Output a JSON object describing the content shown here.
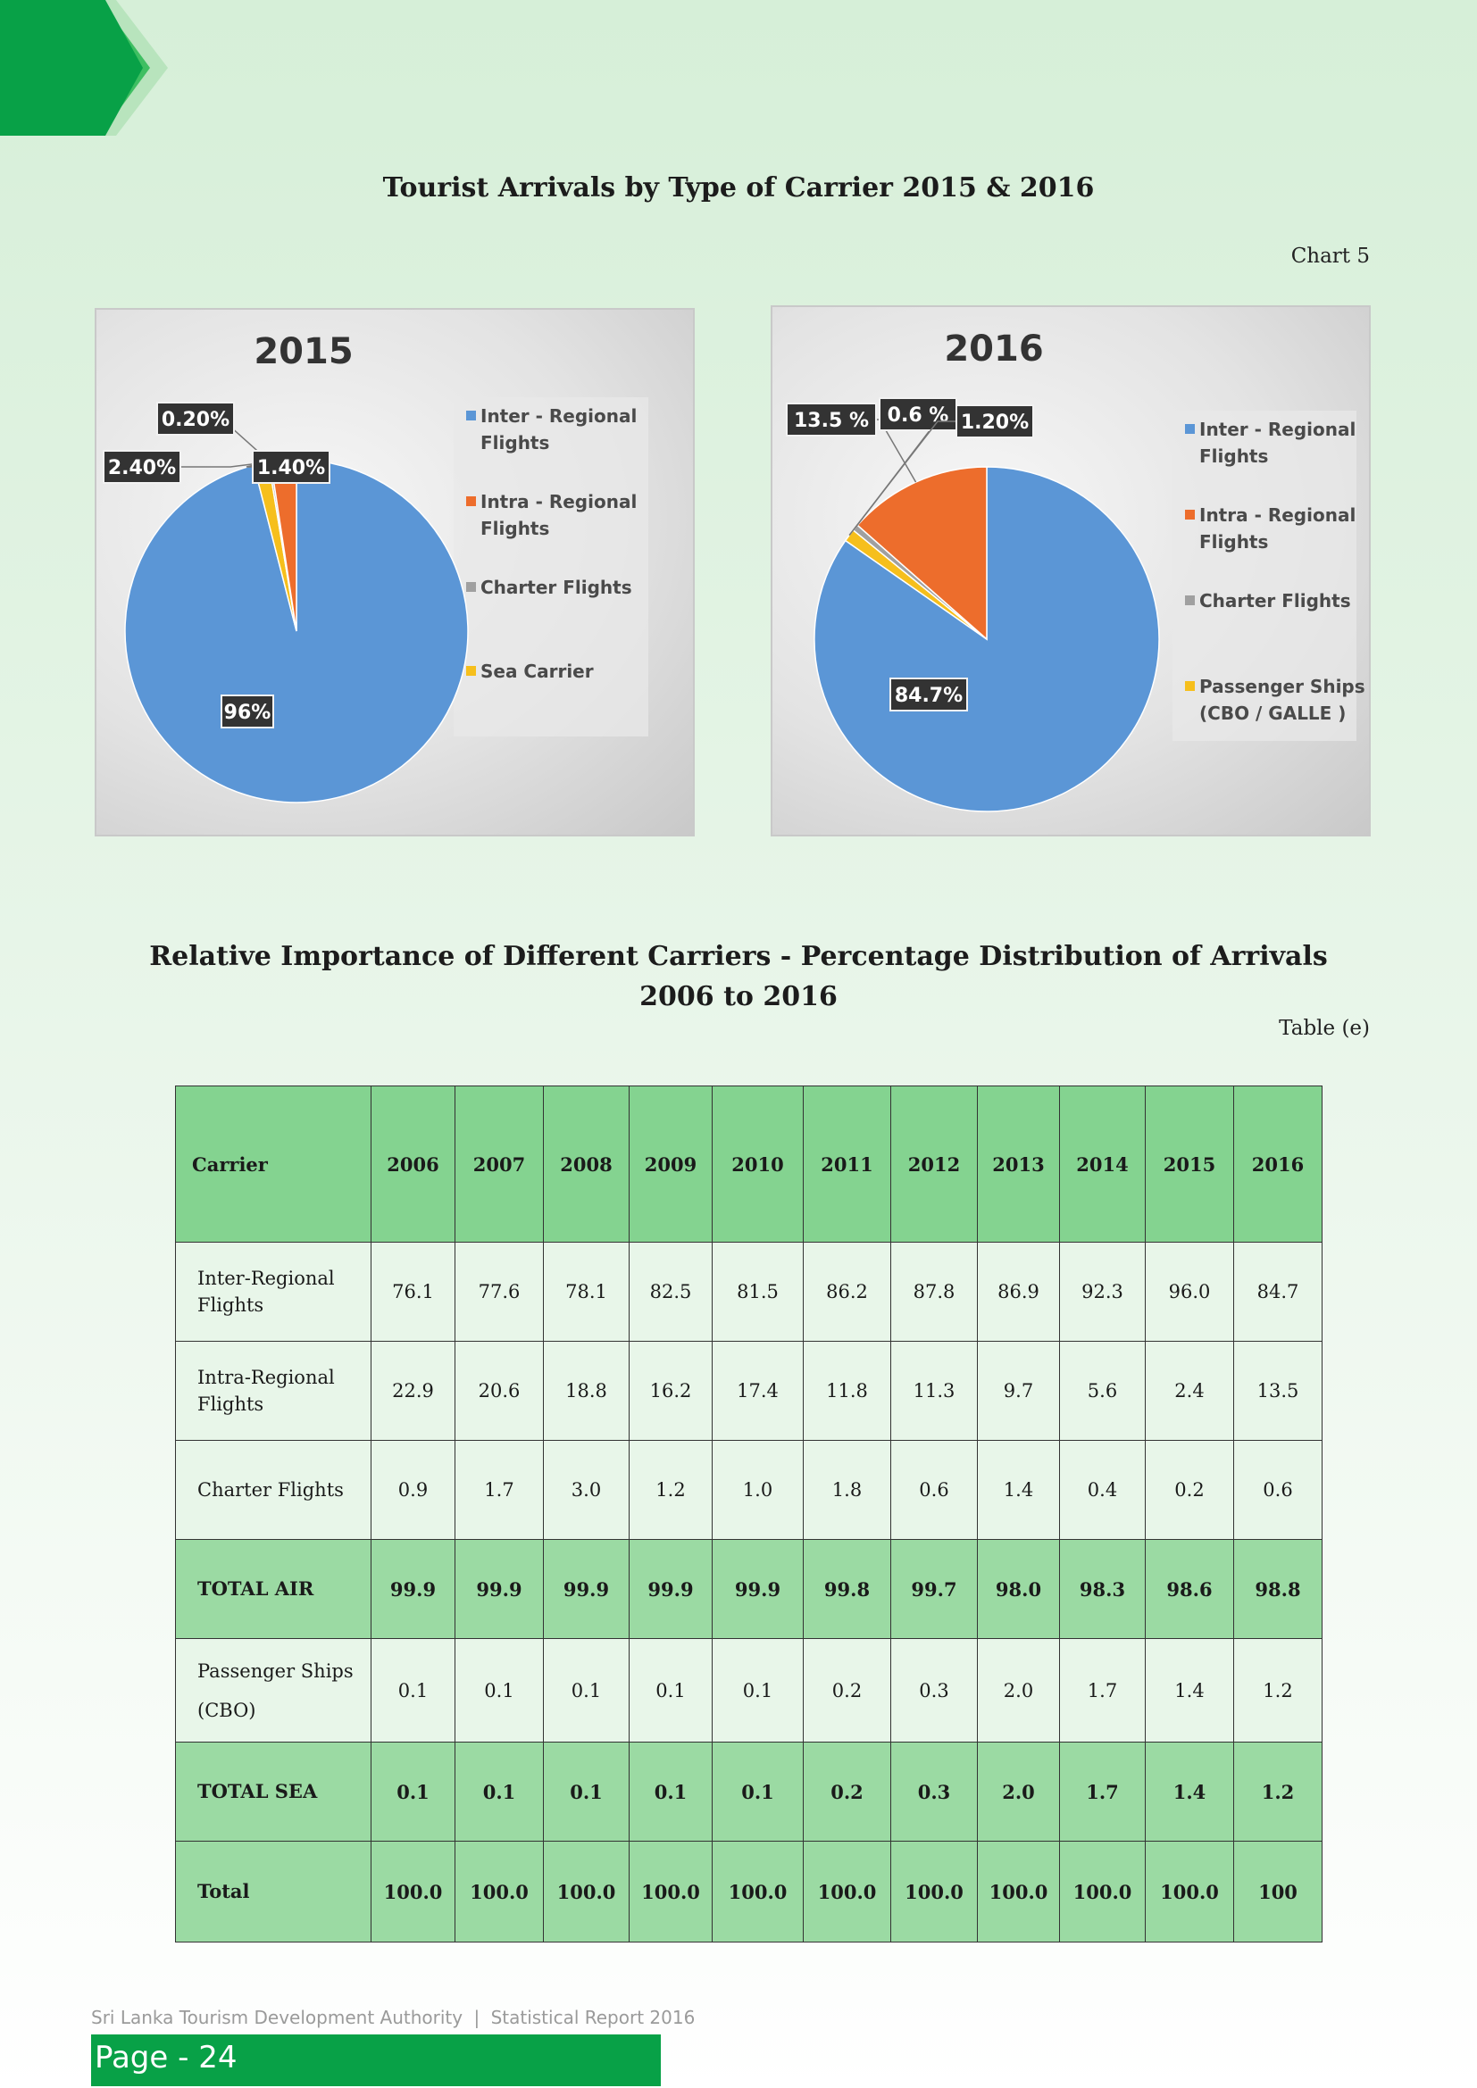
{
  "header": {
    "chart_section_title": "Tourist Arrivals by Type of Carrier 2015 & 2016",
    "chart_ref": "Chart 5",
    "table_section_title_line1": "Relative Importance of Different Carriers - Percentage Distribution of Arrivals",
    "table_section_title_line2": "2006 to 2016",
    "table_ref": "Table (e)"
  },
  "colors": {
    "inter_regional": "#5b96d6",
    "intra_regional": "#ed6d2c",
    "charter": "#a0a0a0",
    "sea": "#f6bf1c",
    "table_header": "#84d390",
    "table_total": "#9bdaa3",
    "table_body": "#e8f6e9",
    "brand_green": "#08a147"
  },
  "chart_data": [
    {
      "type": "pie",
      "title": "2015",
      "labels": [
        "Inter - Regional Flights",
        "Intra - Regional Flights",
        "Charter Flights",
        "Sea Carrier"
      ],
      "values": [
        96,
        2.4,
        0.2,
        1.4
      ],
      "value_labels": [
        "96%",
        "2.40%",
        "0.20%",
        "1.40%"
      ],
      "legend": [
        [
          "Inter - Regional",
          "Flights"
        ],
        [
          "Intra - Regional",
          "Flights"
        ],
        [
          "Charter Flights"
        ],
        [
          "Sea Carrier"
        ]
      ],
      "legend_position": "right"
    },
    {
      "type": "pie",
      "title": "2016",
      "labels": [
        "Inter - Regional Flights",
        "Intra - Regional Flights",
        "Charter Flights",
        "Passenger Ships (CBO / GALLE )"
      ],
      "values": [
        84.7,
        13.5,
        0.6,
        1.2
      ],
      "value_labels": [
        "84.7%",
        "13.5 %",
        "0.6 %",
        "1.20%"
      ],
      "legend": [
        [
          "Inter - Regional",
          "Flights"
        ],
        [
          "Intra - Regional",
          "Flights"
        ],
        [
          "Charter Flights"
        ],
        [
          "Passenger Ships",
          "(CBO / GALLE  )"
        ]
      ],
      "legend_position": "right"
    }
  ],
  "table": {
    "header_label": "Carrier",
    "years": [
      "2006",
      "2007",
      "2008",
      "2009",
      "2010",
      "2011",
      "2012",
      "2013",
      "2014",
      "2015",
      "2016"
    ],
    "rows": [
      {
        "label_lines": [
          "Inter-Regional",
          "Flights"
        ],
        "kind": "data",
        "values": [
          "76.1",
          "77.6",
          "78.1",
          "82.5",
          "81.5",
          "86.2",
          "87.8",
          "86.9",
          "92.3",
          "96.0",
          "84.7"
        ]
      },
      {
        "label_lines": [
          "Intra-Regional",
          "Flights"
        ],
        "kind": "data",
        "values": [
          "22.9",
          "20.6",
          "18.8",
          "16.2",
          "17.4",
          "11.8",
          "11.3",
          "9.7",
          "5.6",
          "2.4",
          "13.5"
        ]
      },
      {
        "label_lines": [
          "Charter Flights"
        ],
        "kind": "data",
        "values": [
          "0.9",
          "1.7",
          "3.0",
          "1.2",
          "1.0",
          "1.8",
          "0.6",
          "1.4",
          "0.4",
          "0.2",
          "0.6"
        ]
      },
      {
        "label_lines": [
          "TOTAL AIR"
        ],
        "kind": "total",
        "values": [
          "99.9",
          "99.9",
          "99.9",
          "99.9",
          "99.9",
          "99.8",
          "99.7",
          "98.0",
          "98.3",
          "98.6",
          "98.8"
        ]
      },
      {
        "label_lines": [
          "Passenger Ships",
          "(CBO)"
        ],
        "kind": "ship",
        "values": [
          "0.1",
          "0.1",
          "0.1",
          "0.1",
          "0.1",
          "0.2",
          "0.3",
          "2.0",
          "1.7",
          "1.4",
          "1.2"
        ]
      },
      {
        "label_lines": [
          "TOTAL SEA"
        ],
        "kind": "total",
        "values": [
          "0.1",
          "0.1",
          "0.1",
          "0.1",
          "0.1",
          "0.2",
          "0.3",
          "2.0",
          "1.7",
          "1.4",
          "1.2"
        ]
      },
      {
        "label_lines": [
          "Total"
        ],
        "kind": "grand",
        "values": [
          "100.0",
          "100.0",
          "100.0",
          "100.0",
          "100.0",
          "100.0",
          "100.0",
          "100.0",
          "100.0",
          "100.0",
          "100"
        ]
      }
    ]
  },
  "footer": {
    "organization": "Sri Lanka Tourism Development Authority",
    "separator": "|",
    "report": "Statistical Report 2016",
    "page": "Page - 24"
  }
}
